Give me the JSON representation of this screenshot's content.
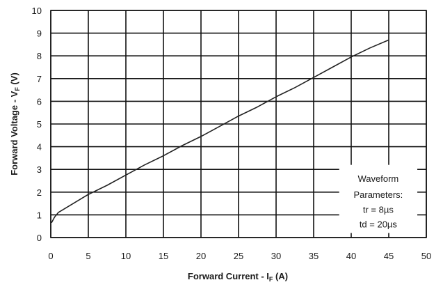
{
  "chart_data": {
    "type": "line",
    "xlabel": "Forward Current - I",
    "xlabel_sub": "F",
    "xlabel_unit": " (A)",
    "ylabel": "Forward Voltage - V",
    "ylabel_sub": "F",
    "ylabel_unit": " (V)",
    "xlim": [
      0,
      50
    ],
    "ylim": [
      0,
      10
    ],
    "x_ticks": [
      "0",
      "5",
      "10",
      "15",
      "20",
      "25",
      "30",
      "35",
      "40",
      "45",
      "50"
    ],
    "y_ticks": [
      "0",
      "1",
      "2",
      "3",
      "4",
      "5",
      "6",
      "7",
      "8",
      "9",
      "10"
    ],
    "grid": true,
    "series": [
      {
        "x": [
          0.1,
          0.5,
          1,
          2,
          3,
          5,
          7.5,
          10,
          12.5,
          15,
          17.5,
          20,
          22.5,
          25,
          27.5,
          30,
          32.5,
          35,
          37.5,
          40,
          42.5,
          45
        ],
        "y": [
          0.65,
          0.9,
          1.1,
          1.3,
          1.5,
          1.9,
          2.3,
          2.75,
          3.2,
          3.6,
          4.05,
          4.45,
          4.9,
          5.35,
          5.75,
          6.2,
          6.6,
          7.05,
          7.5,
          7.95,
          8.35,
          8.7
        ]
      }
    ],
    "annotation": {
      "lines": [
        "Waveform",
        "Parameters:",
        "tr = 8µs",
        "td = 20µs"
      ]
    }
  }
}
